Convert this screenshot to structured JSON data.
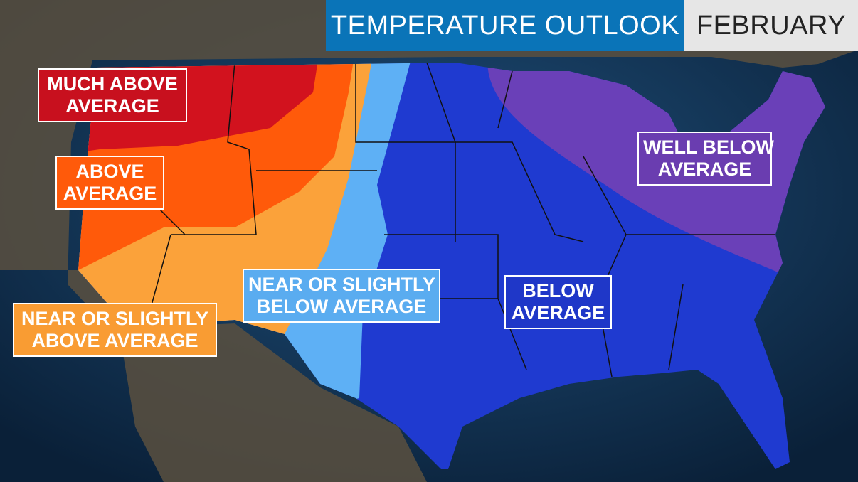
{
  "header": {
    "title": "TEMPERATURE OUTLOOK",
    "month": "FEBRUARY"
  },
  "regions": [
    {
      "lines": [
        "MUCH ABOVE",
        "AVERAGE"
      ]
    },
    {
      "lines": [
        "ABOVE",
        "AVERAGE"
      ]
    },
    {
      "lines": [
        "NEAR OR SLIGHTLY",
        "ABOVE AVERAGE"
      ]
    },
    {
      "lines": [
        "NEAR OR SLIGHTLY",
        "BELOW AVERAGE"
      ]
    },
    {
      "lines": [
        "BELOW",
        "AVERAGE"
      ]
    },
    {
      "lines": [
        "WELL BELOW",
        "AVERAGE"
      ]
    }
  ]
}
